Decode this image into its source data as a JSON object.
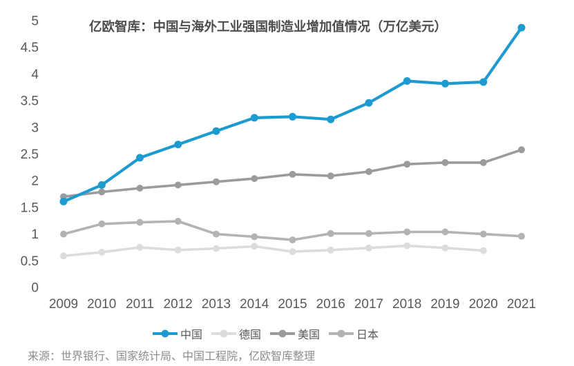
{
  "title": "亿欧智库：中国与海外工业强国制造业增加值情况（万亿美元）",
  "source": "来源：世界银行、国家统计局、中国工程院，亿欧智库整理",
  "colors": {
    "china_blue": "#1D9BD1",
    "germany_gray": "#DCDCDC",
    "usa_gray": "#9B9B9B",
    "japan_gray": "#B3B3B3",
    "title_text": "#4D4D4D",
    "axis_text": "#595959",
    "source_text": "#8C8C8C"
  },
  "chart_data": {
    "type": "line",
    "title": "亿欧智库：中国与海外工业强国制造业增加值情况（万亿美元）",
    "unit": "万亿美元",
    "categories": [
      "2009",
      "2010",
      "2011",
      "2012",
      "2013",
      "2014",
      "2015",
      "2016",
      "2017",
      "2018",
      "2019",
      "2020",
      "2021"
    ],
    "y_ticks": [
      "0",
      "0.5",
      "1",
      "1.5",
      "2",
      "2.5",
      "3",
      "3.5",
      "4",
      "4.5",
      "5"
    ],
    "ylim": [
      0,
      5
    ],
    "grid": false,
    "legend_position": "bottom",
    "series": [
      {
        "id": "china",
        "name": "中国",
        "color": "#1D9BD1",
        "z": 4,
        "values": [
          1.61,
          1.92,
          2.43,
          2.68,
          2.93,
          3.18,
          3.2,
          3.15,
          3.46,
          3.87,
          3.82,
          3.85,
          4.87
        ]
      },
      {
        "id": "germany",
        "name": "德国",
        "color": "#DCDCDC",
        "z": 1,
        "values": [
          0.59,
          0.66,
          0.75,
          0.7,
          0.73,
          0.77,
          0.67,
          0.7,
          0.74,
          0.78,
          0.74,
          0.69,
          null
        ]
      },
      {
        "id": "usa",
        "name": "美国",
        "color": "#9B9B9B",
        "z": 3,
        "values": [
          1.7,
          1.79,
          1.86,
          1.92,
          1.98,
          2.04,
          2.12,
          2.09,
          2.17,
          2.31,
          2.34,
          2.34,
          2.58
        ]
      },
      {
        "id": "japan",
        "name": "日本",
        "color": "#B3B3B3",
        "z": 2,
        "values": [
          1.0,
          1.19,
          1.22,
          1.24,
          1.0,
          0.95,
          0.89,
          1.01,
          1.01,
          1.04,
          1.04,
          1.0,
          0.96
        ]
      }
    ]
  }
}
